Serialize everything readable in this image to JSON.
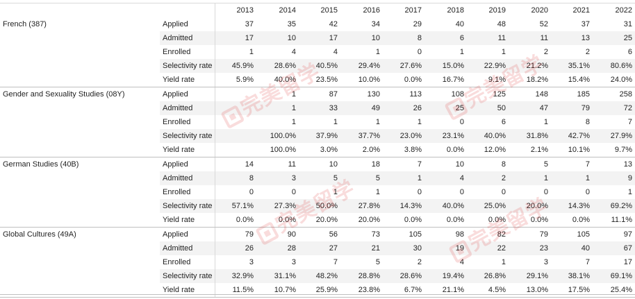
{
  "years": [
    "2013",
    "2014",
    "2015",
    "2016",
    "2017",
    "2018",
    "2019",
    "2020",
    "2021",
    "2022"
  ],
  "watermark_text": "完美留学",
  "programs": [
    {
      "name": "French (387)",
      "rows": [
        {
          "metric": "Applied",
          "values": [
            "37",
            "35",
            "42",
            "34",
            "29",
            "40",
            "48",
            "52",
            "37",
            "31"
          ]
        },
        {
          "metric": "Admitted",
          "values": [
            "17",
            "10",
            "17",
            "10",
            "8",
            "6",
            "11",
            "11",
            "13",
            "25"
          ]
        },
        {
          "metric": "Enrolled",
          "values": [
            "1",
            "4",
            "4",
            "1",
            "0",
            "1",
            "1",
            "2",
            "2",
            "6"
          ]
        },
        {
          "metric": "Selectivity rate",
          "values": [
            "45.9%",
            "28.6%",
            "40.5%",
            "29.4%",
            "27.6%",
            "15.0%",
            "22.9%",
            "21.2%",
            "35.1%",
            "80.6%"
          ]
        },
        {
          "metric": "Yield rate",
          "values": [
            "5.9%",
            "40.0%",
            "23.5%",
            "10.0%",
            "0.0%",
            "16.7%",
            "9.1%",
            "18.2%",
            "15.4%",
            "24.0%"
          ]
        }
      ]
    },
    {
      "name": "Gender and Sexuality Studies (08Y)",
      "rows": [
        {
          "metric": "Applied",
          "values": [
            "",
            "1",
            "87",
            "130",
            "113",
            "108",
            "125",
            "148",
            "185",
            "258"
          ]
        },
        {
          "metric": "Admitted",
          "values": [
            "",
            "1",
            "33",
            "49",
            "26",
            "25",
            "50",
            "47",
            "79",
            "72"
          ]
        },
        {
          "metric": "Enrolled",
          "values": [
            "",
            "1",
            "1",
            "1",
            "1",
            "0",
            "6",
            "1",
            "8",
            "7"
          ]
        },
        {
          "metric": "Selectivity rate",
          "values": [
            "",
            "100.0%",
            "37.9%",
            "37.7%",
            "23.0%",
            "23.1%",
            "40.0%",
            "31.8%",
            "42.7%",
            "27.9%"
          ]
        },
        {
          "metric": "Yield rate",
          "values": [
            "",
            "100.0%",
            "3.0%",
            "2.0%",
            "3.8%",
            "0.0%",
            "12.0%",
            "2.1%",
            "10.1%",
            "9.7%"
          ]
        }
      ]
    },
    {
      "name": "German Studies (40B)",
      "rows": [
        {
          "metric": "Applied",
          "values": [
            "14",
            "11",
            "10",
            "18",
            "7",
            "10",
            "8",
            "5",
            "7",
            "13"
          ]
        },
        {
          "metric": "Admitted",
          "values": [
            "8",
            "3",
            "5",
            "5",
            "1",
            "4",
            "2",
            "1",
            "1",
            "9"
          ]
        },
        {
          "metric": "Enrolled",
          "values": [
            "0",
            "0",
            "1",
            "1",
            "0",
            "0",
            "0",
            "0",
            "0",
            "1"
          ]
        },
        {
          "metric": "Selectivity rate",
          "values": [
            "57.1%",
            "27.3%",
            "50.0%",
            "27.8%",
            "14.3%",
            "40.0%",
            "25.0%",
            "20.0%",
            "14.3%",
            "69.2%"
          ]
        },
        {
          "metric": "Yield rate",
          "values": [
            "0.0%",
            "0.0%",
            "20.0%",
            "20.0%",
            "0.0%",
            "0.0%",
            "0.0%",
            "0.0%",
            "0.0%",
            "11.1%"
          ]
        }
      ]
    },
    {
      "name": "Global Cultures (49A)",
      "rows": [
        {
          "metric": "Applied",
          "values": [
            "79",
            "90",
            "56",
            "73",
            "105",
            "98",
            "82",
            "79",
            "105",
            "97"
          ]
        },
        {
          "metric": "Admitted",
          "values": [
            "26",
            "28",
            "27",
            "21",
            "30",
            "19",
            "22",
            "23",
            "40",
            "67"
          ]
        },
        {
          "metric": "Enrolled",
          "values": [
            "3",
            "3",
            "7",
            "5",
            "2",
            "4",
            "1",
            "3",
            "7",
            "17"
          ]
        },
        {
          "metric": "Selectivity rate",
          "values": [
            "32.9%",
            "31.1%",
            "48.2%",
            "28.8%",
            "28.6%",
            "19.4%",
            "26.8%",
            "29.1%",
            "38.1%",
            "69.1%"
          ]
        },
        {
          "metric": "Yield rate",
          "values": [
            "11.5%",
            "10.7%",
            "25.9%",
            "23.8%",
            "6.7%",
            "21.1%",
            "4.5%",
            "13.0%",
            "17.5%",
            "25.4%"
          ]
        }
      ]
    }
  ]
}
